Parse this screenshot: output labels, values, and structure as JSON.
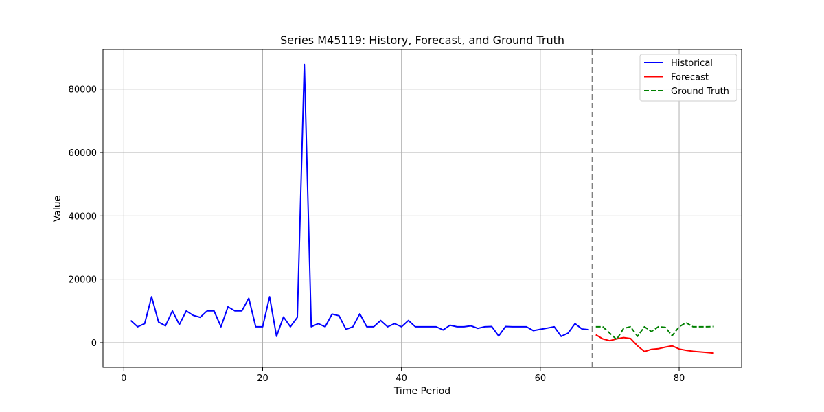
{
  "chart_data": {
    "type": "line",
    "title": "Series M45119: History, Forecast, and Ground Truth",
    "xlabel": "Time Period",
    "ylabel": "Value",
    "xlim": [
      -3,
      89
    ],
    "ylim": [
      -7800,
      92500
    ],
    "xticks": [
      0,
      20,
      40,
      60,
      80
    ],
    "yticks": [
      0,
      20000,
      40000,
      60000,
      80000
    ],
    "grid": true,
    "legend_position": "top-right",
    "forecast_start_marker": 67.5,
    "colors": {
      "historical": "#0000ff",
      "forecast": "#ff0000",
      "ground_truth": "#008000",
      "divider": "#808080"
    },
    "series": [
      {
        "name": "Historical",
        "style": "solid",
        "color": "#0000ff",
        "x": [
          1,
          2,
          3,
          4,
          5,
          6,
          7,
          8,
          9,
          10,
          11,
          12,
          13,
          14,
          15,
          16,
          17,
          18,
          19,
          20,
          21,
          22,
          23,
          24,
          25,
          26,
          27,
          28,
          29,
          30,
          31,
          32,
          33,
          34,
          35,
          36,
          37,
          38,
          39,
          40,
          41,
          42,
          43,
          44,
          45,
          46,
          47,
          48,
          49,
          50,
          51,
          52,
          53,
          54,
          55,
          56,
          57,
          58,
          59,
          60,
          61,
          62,
          63,
          64,
          65,
          66,
          67
        ],
        "y": [
          7000,
          5000,
          6000,
          14500,
          6500,
          5300,
          10000,
          5700,
          10000,
          8600,
          8000,
          10000,
          10000,
          5000,
          11300,
          10000,
          10000,
          14000,
          5000,
          5000,
          14500,
          2000,
          8100,
          5000,
          8000,
          87800,
          5000,
          6000,
          5000,
          9000,
          8500,
          4200,
          5000,
          9100,
          5000,
          5000,
          7000,
          5000,
          6000,
          5000,
          7000,
          5000,
          5000,
          5000,
          5000,
          4000,
          5500,
          5000,
          5000,
          5300,
          4500,
          5000,
          5100,
          2100,
          5100,
          5000,
          5000,
          5000,
          3800,
          4200,
          4600,
          5000,
          2000,
          3000,
          6000,
          4300,
          4100
        ]
      },
      {
        "name": "Forecast",
        "style": "solid",
        "color": "#ff0000",
        "x": [
          68,
          69,
          70,
          71,
          72,
          73,
          74,
          75,
          76,
          77,
          78,
          79,
          80,
          81,
          82,
          83,
          84,
          85
        ],
        "y": [
          2500,
          1200,
          600,
          1200,
          1600,
          1300,
          -1000,
          -2800,
          -2100,
          -1900,
          -1400,
          -1000,
          -2000,
          -2400,
          -2700,
          -2900,
          -3100,
          -3300
        ]
      },
      {
        "name": "Ground Truth",
        "style": "dashed",
        "color": "#008000",
        "x": [
          68,
          69,
          70,
          71,
          72,
          73,
          74,
          75,
          76,
          77,
          78,
          79,
          80,
          81,
          82,
          83,
          84,
          85
        ],
        "y": [
          5000,
          5000,
          3000,
          1000,
          4500,
          5000,
          2000,
          5000,
          3500,
          5000,
          4800,
          2200,
          5000,
          6300,
          5000,
          5000,
          5000,
          5100
        ]
      }
    ]
  }
}
